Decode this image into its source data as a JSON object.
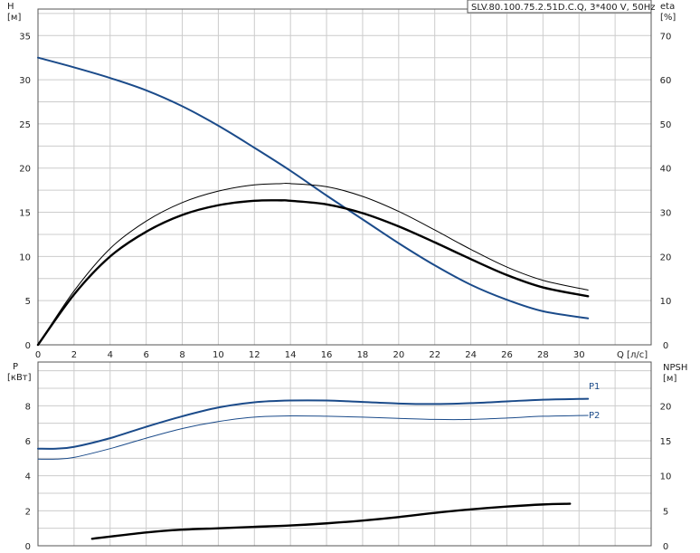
{
  "chart_data": [
    {
      "type": "line",
      "title": "SLV.80.100.75.2.51D.C.Q, 3*400 V, 50Hz",
      "xlabel": "Q [л/с]",
      "ylabel": "H\n[м]",
      "ylabel_right": "eta\n[%]",
      "xlim": [
        0,
        34
      ],
      "ylim": [
        0,
        38
      ],
      "ylim_right": [
        0,
        76
      ],
      "x_ticks": [
        0,
        2,
        4,
        6,
        8,
        10,
        12,
        14,
        16,
        18,
        20,
        22,
        24,
        26,
        28,
        30
      ],
      "y_ticks": [
        0,
        5,
        10,
        15,
        20,
        25,
        30,
        35
      ],
      "y_ticks_right": [
        0,
        10,
        20,
        30,
        40,
        50,
        60,
        70
      ],
      "grid": true,
      "series": [
        {
          "axis": "left",
          "color": "#1b4b8a",
          "width": 2,
          "x": [
            0,
            2,
            4,
            6,
            8,
            10,
            12,
            14,
            16,
            18,
            20,
            22,
            24,
            26,
            28,
            30.5
          ],
          "y": [
            32.5,
            31.4,
            30.2,
            28.8,
            27.0,
            24.8,
            22.3,
            19.7,
            16.9,
            14.2,
            11.5,
            9.0,
            6.8,
            5.1,
            3.8,
            3.0
          ]
        },
        {
          "axis": "right",
          "color": "#000000",
          "width": 1,
          "x": [
            0,
            2,
            4,
            6,
            8,
            10,
            12,
            13.5,
            14,
            16,
            18,
            20,
            22,
            24,
            26,
            28,
            30.5
          ],
          "y": [
            0,
            12.2,
            21.8,
            28.0,
            32.2,
            34.8,
            36.2,
            36.5,
            36.5,
            35.8,
            33.6,
            30.2,
            26.0,
            21.6,
            17.6,
            14.6,
            12.4
          ]
        },
        {
          "axis": "right",
          "color": "#000000",
          "width": 2.4,
          "x": [
            0,
            2,
            4,
            6,
            8,
            10,
            12,
            13.5,
            14,
            16,
            18,
            20,
            22,
            24,
            26,
            28,
            30.5
          ],
          "y": [
            0,
            11.4,
            20.0,
            25.6,
            29.4,
            31.6,
            32.6,
            32.7,
            32.6,
            31.8,
            29.8,
            26.8,
            23.2,
            19.4,
            15.8,
            13.0,
            11.0
          ]
        }
      ]
    },
    {
      "type": "line",
      "ylabel": "P\n[кВт]",
      "ylabel_right": "NPSH\n[м]",
      "xlim": [
        0,
        34
      ],
      "ylim": [
        0,
        10.5
      ],
      "ylim_right": [
        0,
        26.25
      ],
      "y_ticks": [
        0,
        2,
        4,
        6,
        8
      ],
      "y_ticks_right": [
        0,
        5,
        10,
        15,
        20
      ],
      "grid": true,
      "series": [
        {
          "name": "P1",
          "axis": "left",
          "color": "#1b4b8a",
          "width": 2,
          "x": [
            0,
            1,
            2,
            4,
            6,
            8,
            10,
            12,
            14,
            16,
            18,
            20,
            22,
            24,
            26,
            28,
            30.5
          ],
          "y": [
            5.55,
            5.55,
            5.65,
            6.15,
            6.8,
            7.4,
            7.9,
            8.2,
            8.3,
            8.3,
            8.22,
            8.13,
            8.1,
            8.15,
            8.25,
            8.35,
            8.4
          ]
        },
        {
          "name": "P2",
          "axis": "left",
          "color": "#1b4b8a",
          "width": 1,
          "x": [
            0,
            1,
            2,
            4,
            6,
            8,
            10,
            12,
            14,
            16,
            18,
            20,
            22,
            24,
            26,
            28,
            30.5
          ],
          "y": [
            4.95,
            4.95,
            5.05,
            5.55,
            6.15,
            6.7,
            7.1,
            7.35,
            7.42,
            7.4,
            7.35,
            7.28,
            7.22,
            7.22,
            7.3,
            7.4,
            7.45
          ]
        },
        {
          "axis": "right",
          "color": "#000000",
          "width": 2.4,
          "x": [
            3,
            6,
            8,
            10,
            12,
            14,
            16,
            18,
            20,
            22,
            24,
            26,
            28,
            29.5
          ],
          "y": [
            1.0,
            1.9,
            2.3,
            2.5,
            2.7,
            2.9,
            3.2,
            3.6,
            4.1,
            4.7,
            5.2,
            5.6,
            5.9,
            6.0
          ]
        }
      ]
    }
  ]
}
